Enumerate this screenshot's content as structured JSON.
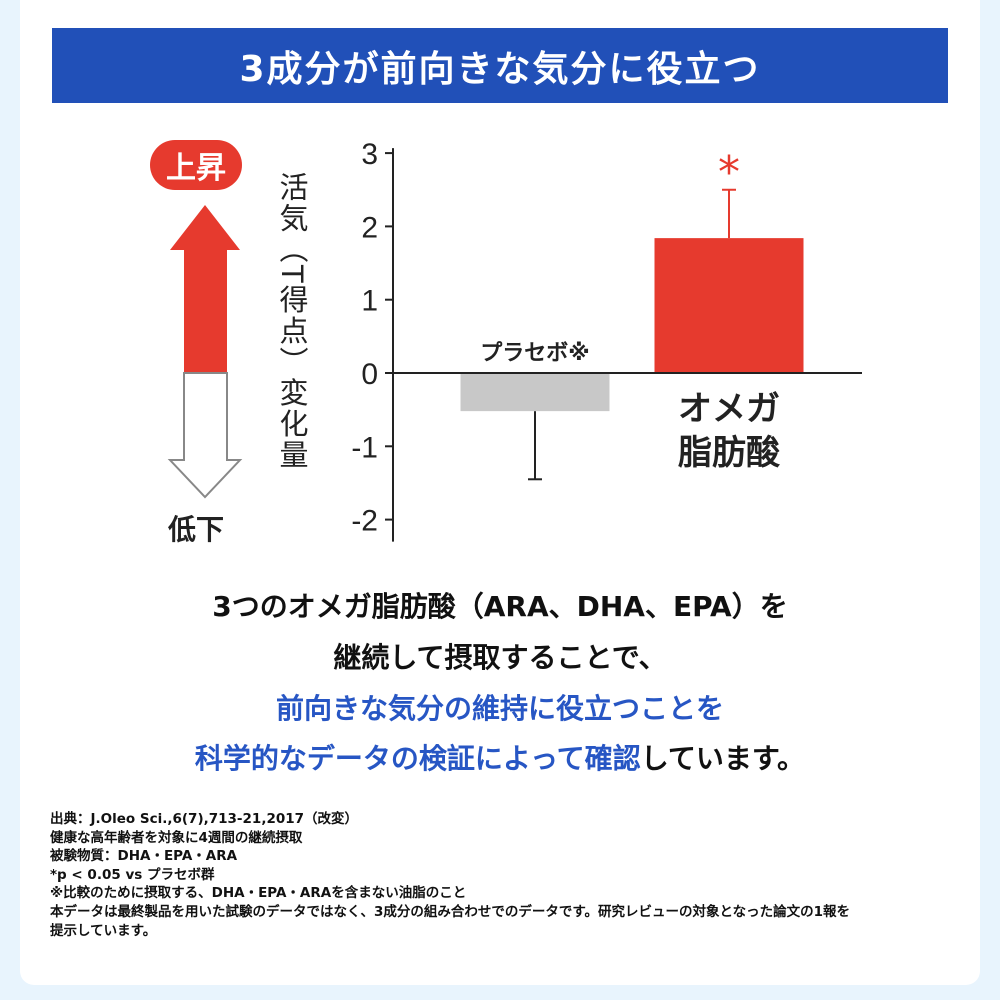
{
  "banner": {
    "title": "3成分が前向きな気分に役立つ"
  },
  "indicator": {
    "up_label": "上昇",
    "down_label": "低下",
    "up_color": "#e63a2e"
  },
  "chart_data": {
    "type": "bar",
    "ylabel": "活気（T得点）変化量",
    "ylim": [
      -2.3,
      3
    ],
    "yticks": [
      3,
      2,
      1,
      0,
      -1,
      -2
    ],
    "grid": false,
    "categories": [
      "プラセボ※",
      "オメガ脂肪酸"
    ],
    "category_lines": [
      [
        "プラセボ※"
      ],
      [
        "オメガ",
        "脂肪酸"
      ]
    ],
    "values": [
      -0.52,
      1.84
    ],
    "error_ends": [
      -1.45,
      2.5
    ],
    "colors": [
      "#c8c8c8",
      "#e63a2e"
    ],
    "significance": [
      "",
      "*"
    ]
  },
  "body": {
    "line1": "3つのオメガ脂肪酸（ARA、DHA、EPA）を",
    "line2": "継続して摂取することで、",
    "line3": "前向きな気分の維持に役立つことを",
    "line4_blue": "科学的なデータの検証によって確認",
    "line4_black": "しています。"
  },
  "notes": [
    "出典：J.Oleo Sci.,6(7),713-21,2017（改変）",
    "健康な高年齢者を対象に4週間の継続摂取",
    "被験物質：DHA・EPA・ARA",
    "*p < 0.05 vs プラセボ群",
    "※比較のために摂取する、DHA・EPA・ARAを含まない油脂のこと",
    "本データは最終製品を用いた試験のデータではなく、3成分の組み合わせでのデータです。研究レビューの対象となった論文の1報を",
    "提示しています。"
  ]
}
